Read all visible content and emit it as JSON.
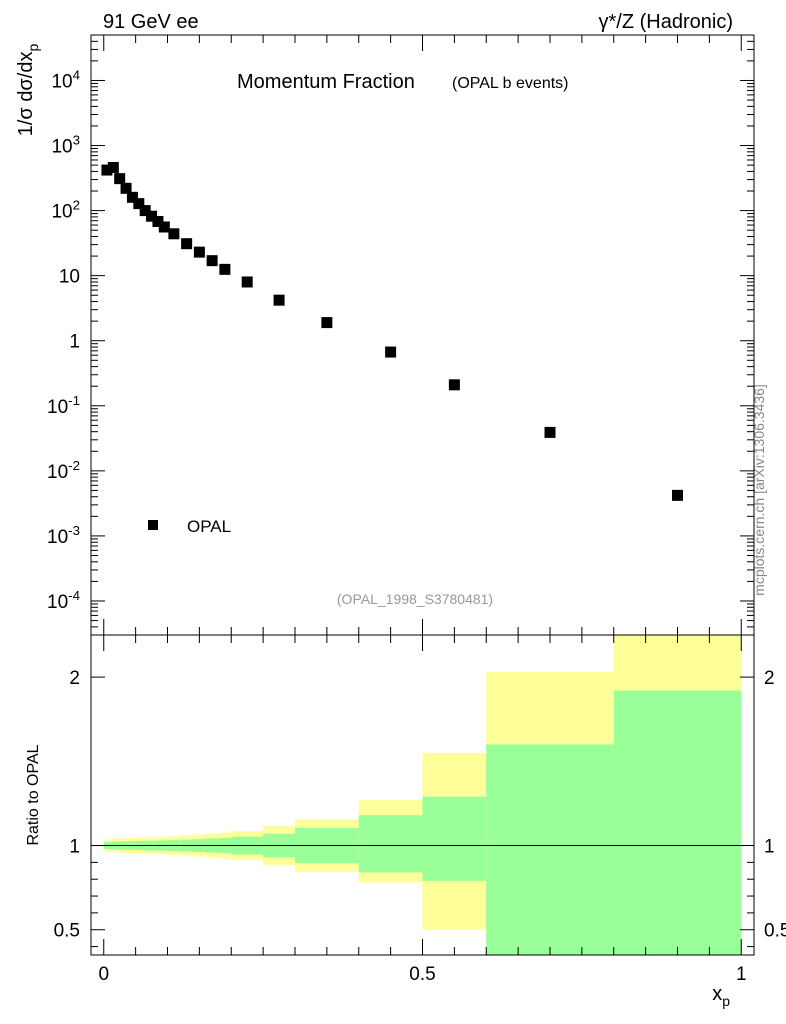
{
  "header": {
    "left": "91 GeV ee",
    "right": "γ*/Z (Hadronic)"
  },
  "side_label": "mcplots.cern.ch [arXiv:1306.3436]",
  "chart_data": [
    {
      "type": "scatter",
      "title": "Momentum Fraction",
      "subtitle": "(OPAL b events)",
      "ylabel": "1/σ dσ/dx_p",
      "yscale": "log",
      "ylim": [
        3e-05,
        50000
      ],
      "xlim": [
        -0.02,
        1.02
      ],
      "watermark": "(OPAL_1998_S3780481)",
      "y_tick_labels": [
        "10^-4",
        "10^-3",
        "10^-2",
        "10^-1",
        "1",
        "10",
        "10^2",
        "10^3",
        "10^4"
      ],
      "legend": {
        "position": "bottom-left",
        "entries": [
          "OPAL"
        ]
      },
      "series": [
        {
          "name": "OPAL",
          "marker": "square",
          "color": "#000000",
          "x": [
            0.005,
            0.015,
            0.025,
            0.035,
            0.045,
            0.055,
            0.065,
            0.075,
            0.085,
            0.095,
            0.11,
            0.13,
            0.15,
            0.17,
            0.19,
            0.225,
            0.275,
            0.35,
            0.45,
            0.55,
            0.7,
            0.9
          ],
          "y": [
            420,
            460,
            310,
            220,
            160,
            128,
            100,
            82,
            68,
            56,
            44,
            31,
            23,
            17,
            12.5,
            8.0,
            4.2,
            1.9,
            0.67,
            0.21,
            0.039,
            0.0042
          ]
        }
      ]
    },
    {
      "type": "area",
      "ylabel": "Ratio to OPAL",
      "xlabel": "x_p",
      "ylim": [
        0.35,
        2.25
      ],
      "xlim": [
        -0.02,
        1.02
      ],
      "x_tick_labels": [
        "0",
        "0.5",
        "1"
      ],
      "y_tick_labels": [
        "0.5",
        "1",
        "2"
      ],
      "reference_line": 1,
      "colors": {
        "stat": "#99ff99",
        "total": "#ffff99"
      },
      "bins": [
        {
          "lo": 0.0,
          "hi": 0.01,
          "inner": [
            0.98,
            1.02
          ],
          "outer": [
            0.965,
            1.035
          ]
        },
        {
          "lo": 0.01,
          "hi": 0.02,
          "inner": [
            0.978,
            1.022
          ],
          "outer": [
            0.962,
            1.038
          ]
        },
        {
          "lo": 0.02,
          "hi": 0.03,
          "inner": [
            0.976,
            1.024
          ],
          "outer": [
            0.958,
            1.042
          ]
        },
        {
          "lo": 0.03,
          "hi": 0.04,
          "inner": [
            0.975,
            1.025
          ],
          "outer": [
            0.956,
            1.044
          ]
        },
        {
          "lo": 0.04,
          "hi": 0.05,
          "inner": [
            0.974,
            1.026
          ],
          "outer": [
            0.955,
            1.045
          ]
        },
        {
          "lo": 0.05,
          "hi": 0.06,
          "inner": [
            0.973,
            1.027
          ],
          "outer": [
            0.954,
            1.046
          ]
        },
        {
          "lo": 0.06,
          "hi": 0.07,
          "inner": [
            0.972,
            1.028
          ],
          "outer": [
            0.953,
            1.047
          ]
        },
        {
          "lo": 0.07,
          "hi": 0.08,
          "inner": [
            0.971,
            1.029
          ],
          "outer": [
            0.952,
            1.048
          ]
        },
        {
          "lo": 0.08,
          "hi": 0.09,
          "inner": [
            0.97,
            1.03
          ],
          "outer": [
            0.95,
            1.05
          ]
        },
        {
          "lo": 0.09,
          "hi": 0.1,
          "inner": [
            0.97,
            1.03
          ],
          "outer": [
            0.949,
            1.051
          ]
        },
        {
          "lo": 0.1,
          "hi": 0.12,
          "inner": [
            0.968,
            1.032
          ],
          "outer": [
            0.945,
            1.055
          ]
        },
        {
          "lo": 0.12,
          "hi": 0.14,
          "inner": [
            0.965,
            1.035
          ],
          "outer": [
            0.94,
            1.06
          ]
        },
        {
          "lo": 0.14,
          "hi": 0.16,
          "inner": [
            0.962,
            1.038
          ],
          "outer": [
            0.935,
            1.065
          ]
        },
        {
          "lo": 0.16,
          "hi": 0.18,
          "inner": [
            0.958,
            1.042
          ],
          "outer": [
            0.93,
            1.07
          ]
        },
        {
          "lo": 0.18,
          "hi": 0.2,
          "inner": [
            0.955,
            1.045
          ],
          "outer": [
            0.925,
            1.075
          ]
        },
        {
          "lo": 0.2,
          "hi": 0.25,
          "inner": [
            0.947,
            1.053
          ],
          "outer": [
            0.915,
            1.085
          ]
        },
        {
          "lo": 0.25,
          "hi": 0.3,
          "inner": [
            0.93,
            1.07
          ],
          "outer": [
            0.885,
            1.115
          ]
        },
        {
          "lo": 0.3,
          "hi": 0.4,
          "inner": [
            0.895,
            1.105
          ],
          "outer": [
            0.845,
            1.155
          ]
        },
        {
          "lo": 0.4,
          "hi": 0.5,
          "inner": [
            0.84,
            1.18
          ],
          "outer": [
            0.78,
            1.27
          ]
        },
        {
          "lo": 0.5,
          "hi": 0.6,
          "inner": [
            0.79,
            1.29
          ],
          "outer": [
            0.5,
            1.55
          ]
        },
        {
          "lo": 0.6,
          "hi": 0.8,
          "inner": [
            0.35,
            1.6
          ],
          "outer": [
            0.35,
            2.03
          ]
        },
        {
          "lo": 0.8,
          "hi": 1.0,
          "inner": [
            0.35,
            1.92
          ],
          "outer": [
            0.35,
            2.25
          ]
        }
      ]
    }
  ]
}
